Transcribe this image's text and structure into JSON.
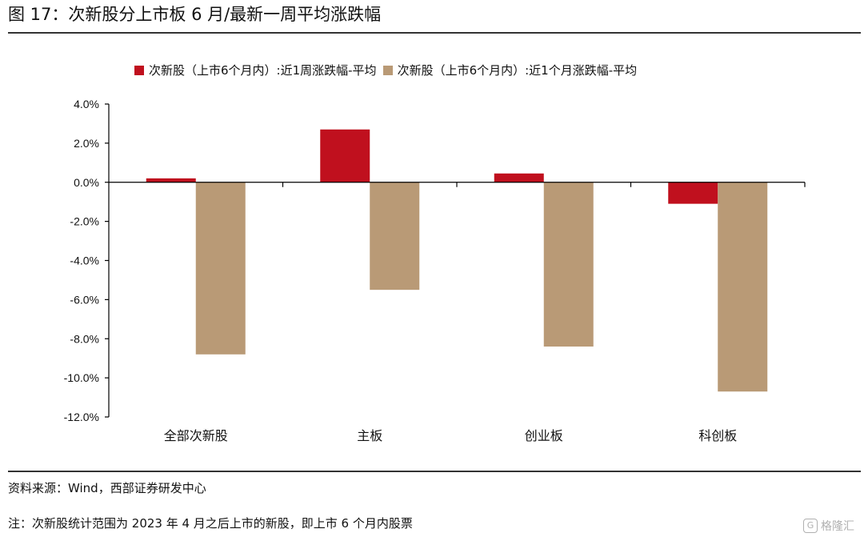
{
  "figure_title": "图 17：次新股分上市板 6 月/最新一周平均涨跌幅",
  "source": "资料来源：Wind，西部证券研发中心",
  "note": "注：次新股统计范围为 2023 年 4 月之后上市的新股，即上市 6 个月内股票",
  "watermark": "格隆汇",
  "chart_data": {
    "type": "bar",
    "categories": [
      "全部次新股",
      "主板",
      "创业板",
      "科创板"
    ],
    "series": [
      {
        "name": "次新股（上市6个月内）:近1周涨跌幅-平均",
        "color": "#C0101E",
        "values": [
          0.2,
          2.7,
          0.45,
          -1.1
        ]
      },
      {
        "name": "次新股（上市6个月内）:近1个月涨跌幅-平均",
        "color": "#B99A76",
        "values": [
          -8.8,
          -5.5,
          -8.4,
          -10.7
        ]
      }
    ],
    "ylim": [
      -12,
      4
    ],
    "yticks": [
      4,
      2,
      0,
      -2,
      -4,
      -6,
      -8,
      -10,
      -12
    ],
    "ytick_labels": [
      "4.0%",
      "2.0%",
      "0.0%",
      "-2.0%",
      "-4.0%",
      "-6.0%",
      "-8.0%",
      "-10.0%",
      "-12.0%"
    ],
    "legend_position": "top",
    "grid": false
  }
}
